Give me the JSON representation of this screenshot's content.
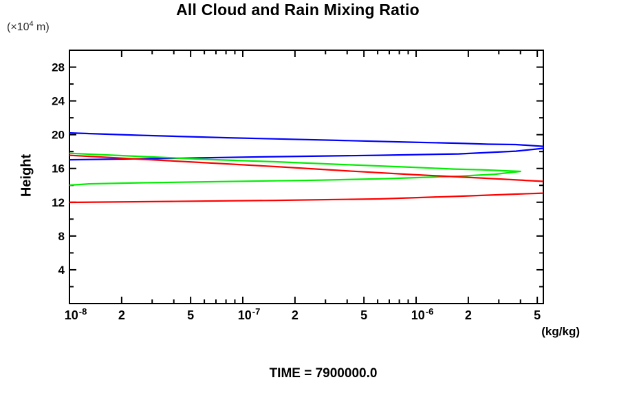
{
  "title": "All Cloud and Rain Mixing Ratio",
  "time_label": "TIME = 7900000.0",
  "y_axis": {
    "label": "Height",
    "unit_prefix": "(×10",
    "unit_exp": "4",
    "unit_suffix": " m)"
  },
  "x_axis": {
    "unit": "(kg/kg)"
  },
  "chart_data": {
    "type": "line",
    "x_scale": "log",
    "xlabel": "(kg/kg)",
    "ylabel": "Height (×10^4 m)",
    "xlim": [
      1e-08,
      5.42e-06
    ],
    "ylim": [
      0,
      30
    ],
    "grid": false,
    "legend": "none",
    "y_major_ticks": [
      4,
      8,
      12,
      16,
      20,
      24,
      28
    ],
    "y_minor_step": 2,
    "x_decades": [
      -8,
      -7,
      -6
    ],
    "x_minor_mantissas": [
      2,
      3,
      4,
      5,
      6,
      7,
      8,
      9
    ],
    "x_ticks": [
      {
        "value": 1e-08,
        "base": "10",
        "exp": "-8"
      },
      {
        "value": 2e-08,
        "label": "2"
      },
      {
        "value": 5e-08,
        "label": "5"
      },
      {
        "value": 1e-07,
        "base": "10",
        "exp": "-7"
      },
      {
        "value": 2e-07,
        "label": "2"
      },
      {
        "value": 5e-07,
        "label": "5"
      },
      {
        "value": 1e-06,
        "base": "10",
        "exp": "-6"
      },
      {
        "value": 2e-06,
        "label": "2"
      },
      {
        "value": 5e-06,
        "label": "5"
      }
    ],
    "series": [
      {
        "name": "blue-profile",
        "color": "#0000ff",
        "points": [
          [
            1e-08,
            17.03
          ],
          [
            3.9e-08,
            17.2
          ],
          [
            1.54e-07,
            17.4
          ],
          [
            6.1e-07,
            17.56
          ],
          [
            1.76e-06,
            17.72
          ],
          [
            3.76e-06,
            18.05
          ],
          [
            5.42e-06,
            18.38
          ],
          [
            6.3e-06,
            18.5
          ],
          [
            5.42e-06,
            18.62
          ],
          [
            3.76e-06,
            18.83
          ],
          [
            2.6e-06,
            18.87
          ],
          [
            1.76e-06,
            18.99
          ],
          [
            9.5e-07,
            19.11
          ],
          [
            3.84e-07,
            19.31
          ],
          [
            8.1e-08,
            19.64
          ],
          [
            2.5e-08,
            19.93
          ],
          [
            1e-08,
            20.21
          ]
        ]
      },
      {
        "name": "green-profile",
        "color": "#00ee00",
        "points": [
          [
            1e-08,
            14.02
          ],
          [
            1.3e-08,
            14.18
          ],
          [
            2.5e-08,
            14.3
          ],
          [
            6.2e-08,
            14.42
          ],
          [
            2.66e-07,
            14.61
          ],
          [
            6.6e-07,
            14.79
          ],
          [
            1.76e-06,
            15.08
          ],
          [
            2.85e-06,
            15.32
          ],
          [
            4e-06,
            15.65
          ],
          [
            2.37e-06,
            15.85
          ],
          [
            1.65e-06,
            15.93
          ],
          [
            9.5e-07,
            16.14
          ],
          [
            3.84e-07,
            16.46
          ],
          [
            1.54e-07,
            16.79
          ],
          [
            6.2e-08,
            17.07
          ],
          [
            2.5e-08,
            17.44
          ],
          [
            1e-08,
            17.8
          ]
        ]
      },
      {
        "name": "red-profile",
        "color": "#ff0000",
        "points": [
          [
            1e-08,
            11.98
          ],
          [
            3.9e-08,
            12.1
          ],
          [
            1.54e-07,
            12.22
          ],
          [
            6.1e-07,
            12.39
          ],
          [
            1.76e-06,
            12.71
          ],
          [
            3.76e-06,
            12.96
          ],
          [
            5.42e-06,
            13.08
          ],
          [
            8e-06,
            13.7
          ],
          [
            5.42e-06,
            14.47
          ],
          [
            2.37e-06,
            14.87
          ],
          [
            9.5e-07,
            15.28
          ],
          [
            3.84e-07,
            15.73
          ],
          [
            1.54e-07,
            16.22
          ],
          [
            6.2e-08,
            16.67
          ],
          [
            2.5e-08,
            17.11
          ],
          [
            1e-08,
            17.56
          ]
        ]
      }
    ]
  }
}
